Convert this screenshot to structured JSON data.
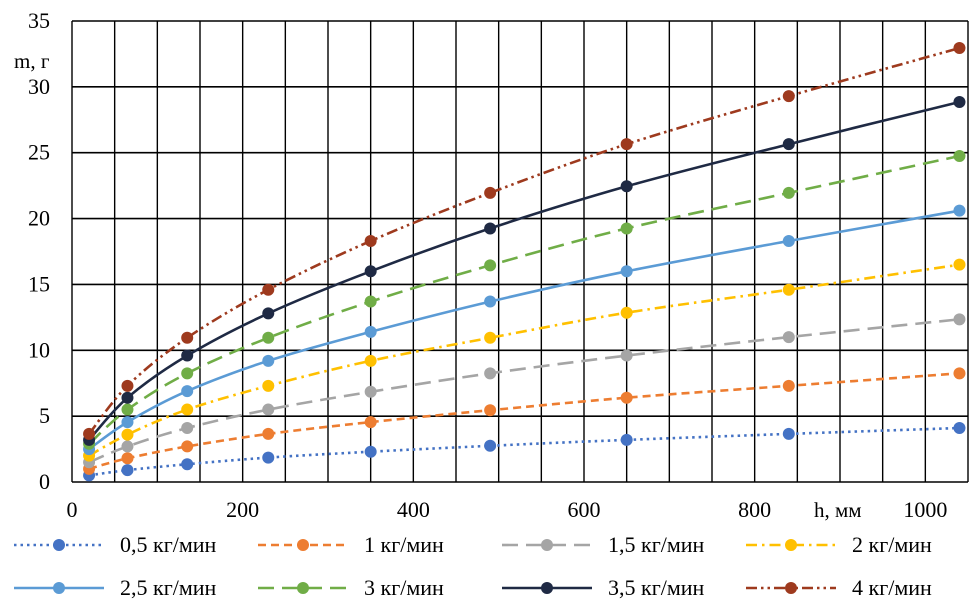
{
  "chart_data": {
    "type": "line",
    "xlabel": "h, мм",
    "ylabel": "m, г",
    "xlim": [
      0,
      1050
    ],
    "ylim": [
      0,
      35
    ],
    "x_ticks": [
      "0",
      "200",
      "400",
      "600",
      "800",
      "1000"
    ],
    "y_ticks": [
      "0",
      "5",
      "10",
      "15",
      "20",
      "25",
      "30",
      "35"
    ],
    "grid": true,
    "legend_position": "bottom",
    "x": [
      20,
      65,
      135,
      230,
      350,
      490,
      650,
      840,
      1040
    ],
    "series": [
      {
        "name": "0,5 кг/мин",
        "color": "#4472C4",
        "dash": "dot",
        "values": [
          0.5,
          0.9,
          1.35,
          1.85,
          2.3,
          2.75,
          3.2,
          3.65,
          4.1
        ]
      },
      {
        "name": "1 кг/мин",
        "color": "#ED7D31",
        "dash": "dash",
        "values": [
          1.0,
          1.8,
          2.7,
          3.65,
          4.55,
          5.45,
          6.4,
          7.3,
          8.25
        ]
      },
      {
        "name": "1,5 кг/мин",
        "color": "#A5A5A5",
        "dash": "longdash",
        "values": [
          1.5,
          2.7,
          4.1,
          5.5,
          6.85,
          8.25,
          9.6,
          11.0,
          12.35
        ]
      },
      {
        "name": "2 кг/мин",
        "color": "#FFC000",
        "dash": "dashdot",
        "values": [
          2.0,
          3.6,
          5.5,
          7.3,
          9.2,
          10.95,
          12.85,
          14.6,
          16.5
        ]
      },
      {
        "name": "2,5 кг/мин",
        "color": "#5B9BD5",
        "dash": "solid",
        "values": [
          2.5,
          4.55,
          6.9,
          9.2,
          11.4,
          13.7,
          16.0,
          18.3,
          20.6
        ]
      },
      {
        "name": "3 кг/мин",
        "color": "#70AD47",
        "dash": "longdash",
        "values": [
          2.9,
          5.5,
          8.25,
          10.95,
          13.7,
          16.45,
          19.25,
          21.95,
          24.75
        ]
      },
      {
        "name": "3,5 кг/мин",
        "color": "#1F2A44",
        "dash": "solid",
        "values": [
          3.2,
          6.4,
          9.6,
          12.8,
          16.0,
          19.25,
          22.45,
          25.65,
          28.85
        ]
      },
      {
        "name": "4 кг/мин",
        "color": "#9E3A1E",
        "dash": "dashdotdot",
        "values": [
          3.65,
          7.3,
          10.95,
          14.6,
          18.3,
          21.95,
          25.65,
          29.3,
          32.95
        ]
      }
    ]
  }
}
